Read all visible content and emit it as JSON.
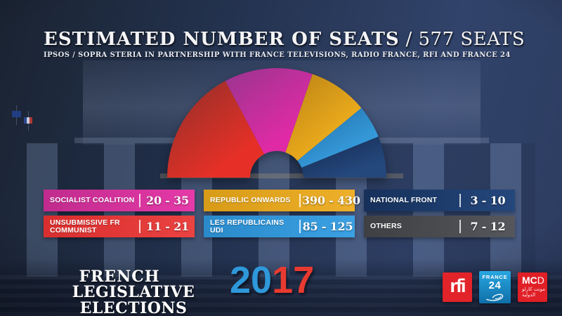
{
  "header": {
    "title": "ESTIMATED NUMBER OF SEATS",
    "title_suffix": " / 577 SEATS",
    "subtitle": "IPSOS / SOPRA STERIA IN PARTNERSHIP WITH FRANCE TELEVISIONS, RADIO FRANCE, RFI AND FRANCE 24"
  },
  "chart_data": {
    "type": "pie",
    "subtype": "hemicycle-donut",
    "title": "ESTIMATED NUMBER OF SEATS / 577 SEATS",
    "total_seats": 577,
    "legend_position": "below",
    "note": "segment arc angles are stylized broadcast graphics, not proportional to seat estimates; OTHERS has no slice",
    "segments": [
      {
        "party": "UNSUBMISSIVE FR COMMUNIST",
        "seats": "11 - 21",
        "seats_min": 11,
        "seats_max": 21,
        "color_dark": "#8e2f28",
        "color": "#e63027",
        "start_deg": 180,
        "end_deg": 118
      },
      {
        "party": "SOCIALIST COALITION",
        "seats": "20 - 35",
        "seats_min": 20,
        "seats_max": 35,
        "color_dark": "#99358f",
        "color": "#e02aa5",
        "start_deg": 118,
        "end_deg": 71
      },
      {
        "party": "REPUBLIC ONWARDS",
        "seats": "390 - 430",
        "seats_min": 390,
        "seats_max": 430,
        "color_dark": "#b98214",
        "color": "#f2b01e",
        "start_deg": 71,
        "end_deg": 39.5
      },
      {
        "party": "LES REPUBLICAINS UDI",
        "seats": "85 - 125",
        "seats_min": 85,
        "seats_max": 125,
        "color_dark": "#226da6",
        "color": "#379fe0",
        "start_deg": 39.5,
        "end_deg": 22
      },
      {
        "party": "NATIONAL FRONT",
        "seats": "3 - 10",
        "seats_min": 3,
        "seats_max": 10,
        "color_dark": "#152a4e",
        "color": "#24477c",
        "start_deg": 22,
        "end_deg": 0
      }
    ],
    "not_in_chart": [
      {
        "party": "OTHERS",
        "seats": "7 - 12",
        "seats_min": 7,
        "seats_max": 12
      }
    ]
  },
  "legend": {
    "items": [
      {
        "label_lines": [
          "SOCIALIST COALITION"
        ],
        "value": "20 - 35",
        "bg_from": "#c02b8d",
        "bg_to": "#e53aa8"
      },
      {
        "label_lines": [
          "UNSUBMISSIVE FR",
          "COMMUNIST"
        ],
        "value": "11 - 21",
        "bg_from": "#d92e2e",
        "bg_to": "#ea4341"
      },
      {
        "label_lines": [
          "REPUBLIC ONWARDS"
        ],
        "value": "390 - 430",
        "bg_from": "#d89b17",
        "bg_to": "#eeb02a"
      },
      {
        "label_lines": [
          "LES REPUBLICAINS",
          "UDI"
        ],
        "value": "85 - 125",
        "bg_from": "#2a8aca",
        "bg_to": "#3ba1e3"
      },
      {
        "label_lines": [
          "NATIONAL FRONT"
        ],
        "value": "3 - 10",
        "bg_from": "#16305a",
        "bg_to": "#24477c"
      },
      {
        "label_lines": [
          "OTHERS"
        ],
        "value": "7 - 12",
        "bg_from": "#3f4043",
        "bg_to": "#55575c"
      }
    ]
  },
  "footer": {
    "line1": "FRENCH",
    "line2": "LEGISLATIVE ELECTIONS",
    "year_blue": "20",
    "year_red": "17",
    "year_blue_color": "#2e98da",
    "year_red_color": "#e83a30"
  },
  "logos": {
    "rfi": {
      "text": "rfi",
      "bg": "#e2242a"
    },
    "france24": {
      "top": "FRANCE",
      "number": "24",
      "bg_from": "#28a6e0",
      "bg_to": "#0f6fa8"
    },
    "mcd": {
      "latin_bold": "MC",
      "latin_light": "D",
      "arabic_line1": "مونت كارلو",
      "arabic_line2": "الدولية",
      "bg": "#e01f26"
    }
  }
}
